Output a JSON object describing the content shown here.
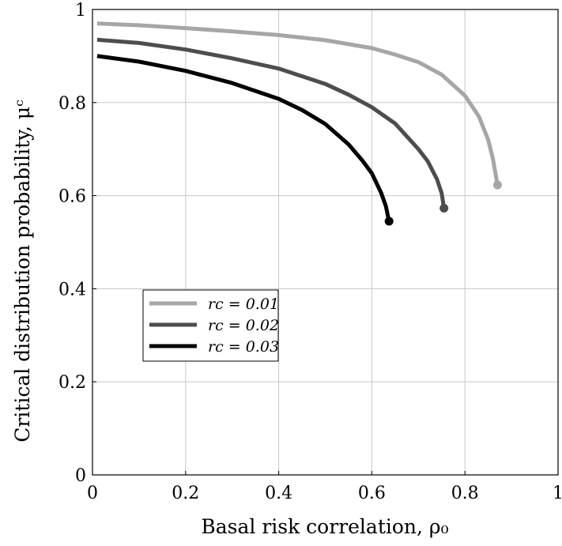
{
  "chart_data": {
    "type": "line",
    "xlabel": "Basal risk correlation, ρ₀",
    "ylabel": "Critical distribution probability, μᶜ",
    "xlim": [
      0,
      1
    ],
    "ylim": [
      0,
      1
    ],
    "xticks": [
      0,
      0.2,
      0.4,
      0.6,
      0.8,
      1
    ],
    "yticks": [
      0,
      0.2,
      0.4,
      0.6,
      0.8,
      1
    ],
    "xtick_labels": [
      "0",
      "0.2",
      "0.4",
      "0.6",
      "0.8",
      "1"
    ],
    "ytick_labels": [
      "0",
      "0.2",
      "0.4",
      "0.6",
      "0.8",
      "1"
    ],
    "grid": true,
    "legend_position": "lower-left",
    "series": [
      {
        "name": "rc = 0.01",
        "color": "#a6a6a6",
        "x": [
          0.01,
          0.1,
          0.2,
          0.3,
          0.4,
          0.5,
          0.6,
          0.65,
          0.7,
          0.75,
          0.8,
          0.83,
          0.85,
          0.86,
          0.87
        ],
        "y": [
          0.97,
          0.966,
          0.96,
          0.953,
          0.945,
          0.934,
          0.917,
          0.903,
          0.887,
          0.86,
          0.815,
          0.77,
          0.72,
          0.68,
          0.623
        ]
      },
      {
        "name": "rc = 0.02",
        "color": "#4d4d4d",
        "x": [
          0.01,
          0.1,
          0.2,
          0.3,
          0.4,
          0.5,
          0.55,
          0.6,
          0.65,
          0.7,
          0.72,
          0.74,
          0.75,
          0.755
        ],
        "y": [
          0.935,
          0.928,
          0.914,
          0.895,
          0.873,
          0.84,
          0.817,
          0.79,
          0.755,
          0.7,
          0.674,
          0.635,
          0.605,
          0.573
        ]
      },
      {
        "name": "rc = 0.03",
        "color": "#000000",
        "x": [
          0.01,
          0.1,
          0.2,
          0.3,
          0.4,
          0.45,
          0.5,
          0.55,
          0.58,
          0.6,
          0.62,
          0.63,
          0.637
        ],
        "y": [
          0.9,
          0.888,
          0.868,
          0.842,
          0.808,
          0.784,
          0.754,
          0.71,
          0.675,
          0.648,
          0.606,
          0.578,
          0.545
        ]
      }
    ]
  }
}
